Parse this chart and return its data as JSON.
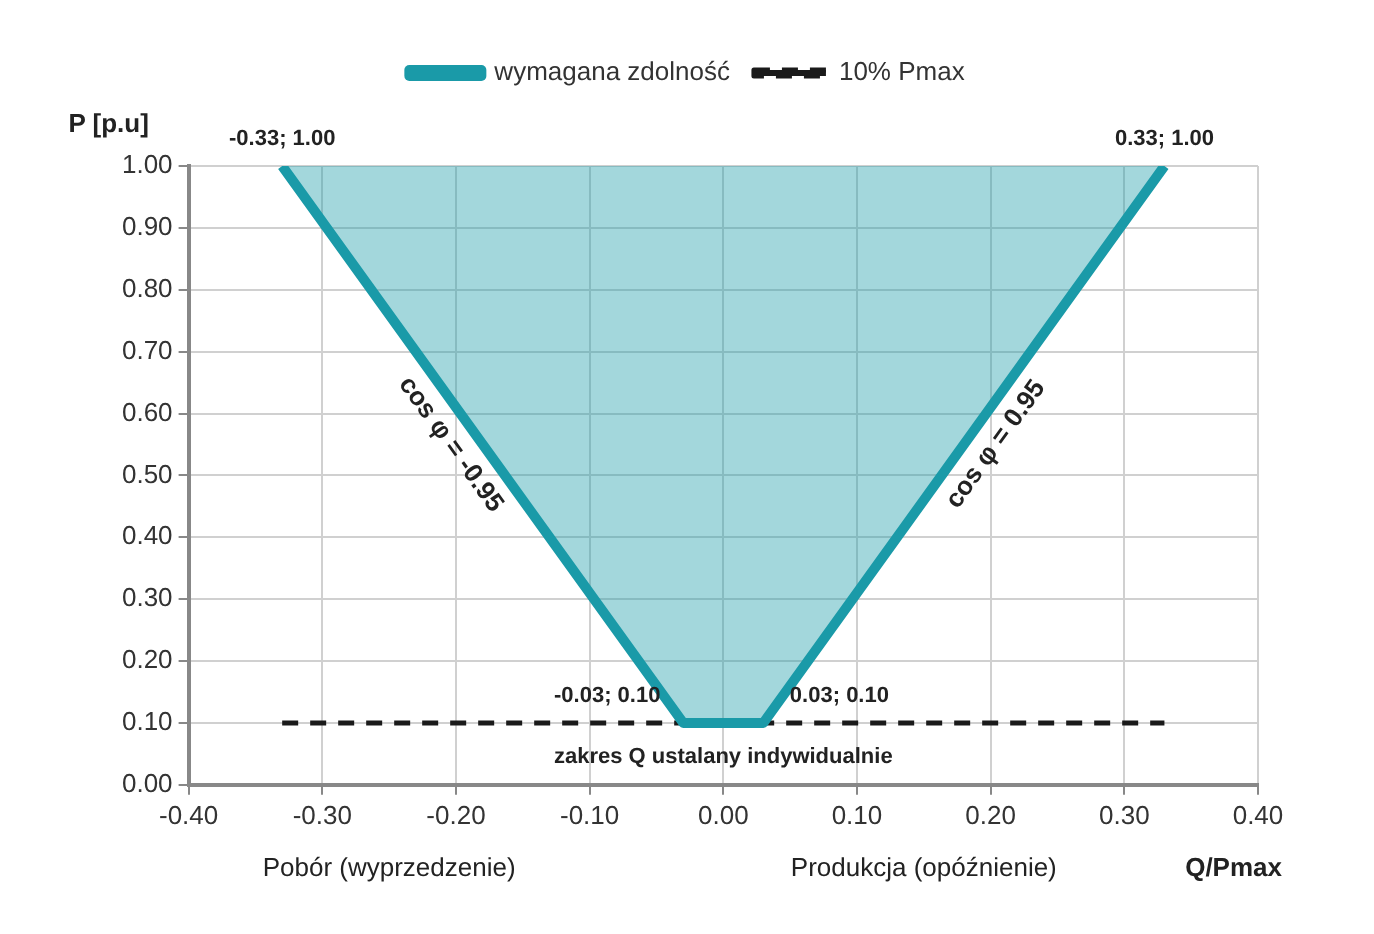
{
  "chart_data": {
    "type": "area",
    "xlabel": "Q/Pmax",
    "ylabel": "P [p.u]",
    "series": [
      {
        "name": "wymagana zdolność",
        "color": "#1a9aa8",
        "x": [
          -0.33,
          -0.03,
          0.03,
          0.33
        ],
        "values": [
          1.0,
          0.1,
          0.1,
          1.0
        ],
        "value_labels": [
          "-0.33; 1.00",
          "-0.03; 0.10",
          "0.03; 0.10",
          "0.33; 1.00"
        ]
      },
      {
        "name": "10% Pmax",
        "type": "line",
        "color": "#1a1a1a",
        "line_style": "dashed",
        "x": [
          -0.33,
          0.33
        ],
        "values": [
          0.1,
          0.1
        ]
      }
    ],
    "xlim": [
      -0.4,
      0.4
    ],
    "xticks": [
      {
        "value": -0.4,
        "label": "-0.40"
      },
      {
        "value": -0.3,
        "label": "-0.30"
      },
      {
        "value": -0.2,
        "label": "-0.20"
      },
      {
        "value": -0.1,
        "label": "-0.10"
      },
      {
        "value": 0,
        "label": "0.00"
      },
      {
        "value": 0.1,
        "label": "0.10"
      },
      {
        "value": 0.2,
        "label": "0.20"
      },
      {
        "value": 0.3,
        "label": "0.30"
      },
      {
        "value": 0.4,
        "label": "0.40"
      }
    ],
    "ylim": [
      0,
      1
    ],
    "yticks": [
      {
        "value": 0,
        "label": "0.00"
      },
      {
        "value": 0.1,
        "label": "0.10"
      },
      {
        "value": 0.2,
        "label": "0.20"
      },
      {
        "value": 0.3,
        "label": "0.30"
      },
      {
        "value": 0.4,
        "label": "0.40"
      },
      {
        "value": 0.5,
        "label": "0.50"
      },
      {
        "value": 0.6,
        "label": "0.60"
      },
      {
        "value": 0.7,
        "label": "0.70"
      },
      {
        "value": 0.8,
        "label": "0.80"
      },
      {
        "value": 0.9,
        "label": "0.90"
      },
      {
        "value": 1,
        "label": "1.00"
      }
    ],
    "grid": true,
    "legend": "top",
    "marker": "none",
    "annotations": [
      "cos φ = -0.95",
      "cos φ = 0.95",
      "zakres Q ustalany indywidualnie",
      "Pobór (wyprzedzenie)",
      "Produkcja (opóźnienie)"
    ]
  }
}
